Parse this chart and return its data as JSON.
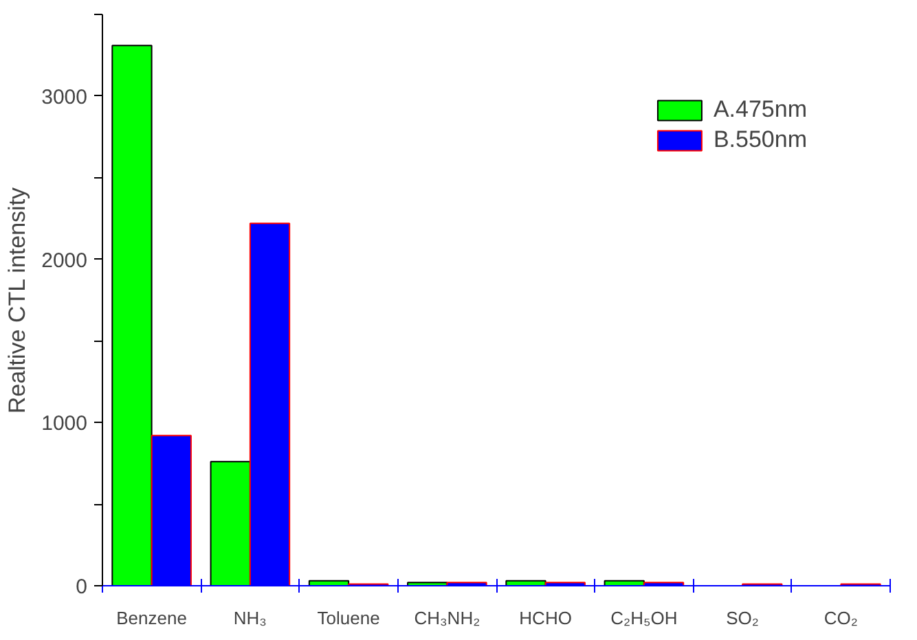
{
  "chart_data": {
    "type": "bar",
    "ylabel": "Realtive CTL intensity",
    "categories": [
      "Benzene",
      "NH₃",
      "Toluene",
      "CH₃NH₂",
      "HCHO",
      "C₂H₅OH",
      "SO₂",
      "CO₂"
    ],
    "series": [
      {
        "name": "A.475nm",
        "color": "#00ff00",
        "values": [
          3310,
          760,
          30,
          20,
          30,
          30,
          null,
          null
        ]
      },
      {
        "name": "B.550nm",
        "color": "#0000ff",
        "values": [
          920,
          2220,
          10,
          20,
          20,
          20,
          10,
          10
        ]
      }
    ],
    "ylim": [
      0,
      3500
    ],
    "yticks": [
      0,
      {
        "value": 500,
        "label": null
      },
      1000,
      {
        "value": 1500,
        "label": null
      },
      2000,
      {
        "value": 2500,
        "label": null
      },
      3000,
      {
        "value": 3500,
        "label": null
      }
    ],
    "grid": false,
    "legend": "top right"
  }
}
